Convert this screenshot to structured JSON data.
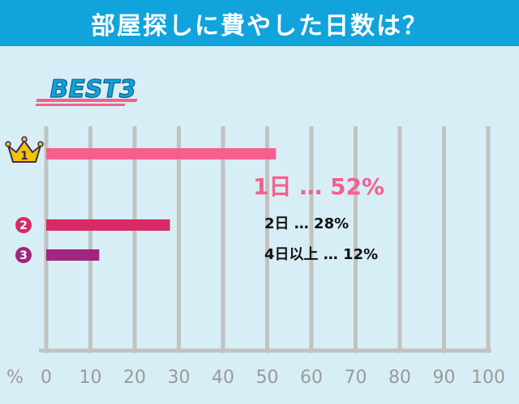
{
  "title": "部屋探しに費やした日数は？",
  "badge": "BEST3",
  "x_unit_label": "%",
  "colors": {
    "header": "#11a3dc",
    "background": "#d8eef6",
    "grid": "#c2c2c2",
    "rank1": "#f4608e",
    "rank2": "#d82a64",
    "rank3": "#a0267e",
    "crown": "#f2c300"
  },
  "chart_data": {
    "type": "bar",
    "orientation": "horizontal",
    "xlim": [
      0,
      100
    ],
    "xticks": [
      0,
      10,
      20,
      30,
      40,
      50,
      60,
      70,
      80,
      90,
      100
    ],
    "grid": true,
    "bars": [
      {
        "rank": "1",
        "label": "1日",
        "value": 52,
        "value_text": "52%",
        "icon": "crown-icon"
      },
      {
        "rank": "2",
        "label": "2日",
        "value": 28,
        "value_text": "28%",
        "icon": "rank-circle-icon"
      },
      {
        "rank": "3",
        "label": "4日以上",
        "value": 12,
        "value_text": "12%",
        "icon": "rank-circle-icon"
      }
    ],
    "separator": "…"
  }
}
